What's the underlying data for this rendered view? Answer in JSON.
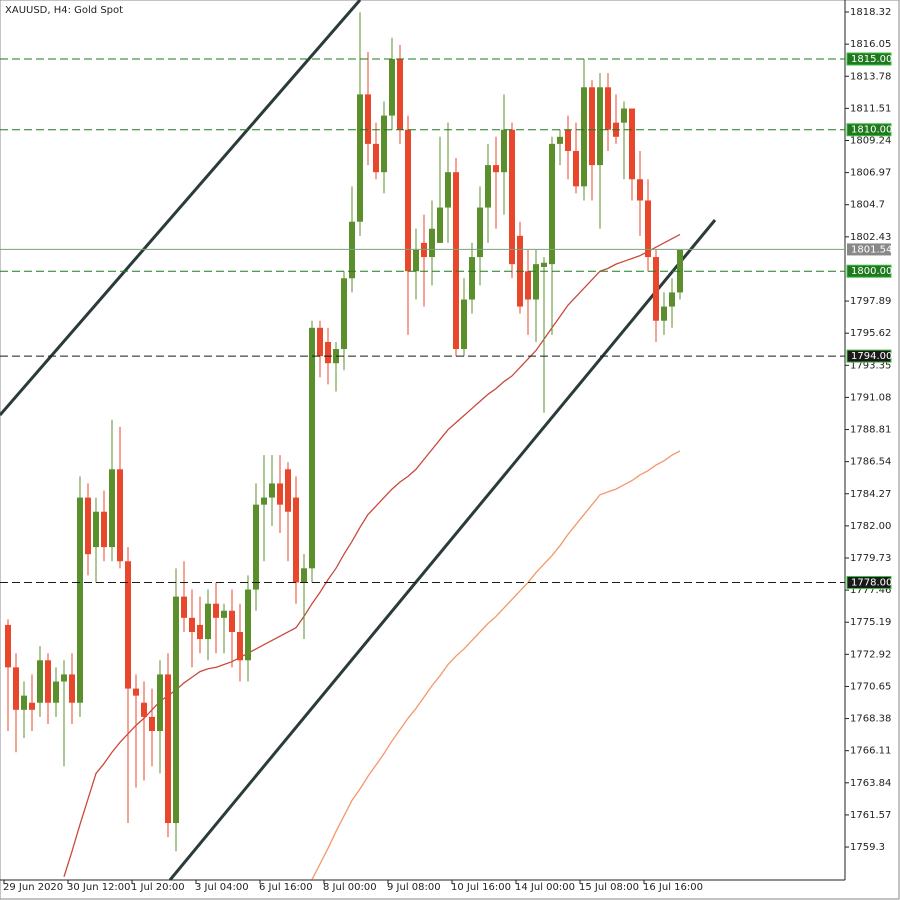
{
  "chart_data": {
    "type": "candlestick",
    "title": "XAUUSD, H4:  Gold Spot",
    "categories": [
      "29 Jun 2020",
      null,
      null,
      null,
      null,
      null,
      null,
      null,
      "30 Jun 12:00",
      null,
      null,
      null,
      null,
      null,
      null,
      null,
      "1 Jul 20:00",
      null,
      null,
      null,
      null,
      null,
      null,
      null,
      "3 Jul 04:00",
      null,
      null,
      null,
      null,
      null,
      null,
      null,
      "6 Jul 16:00",
      null,
      null,
      null,
      null,
      null,
      null,
      null,
      "8 Jul 00:00",
      null,
      null,
      null,
      null,
      null,
      null,
      null,
      "9 Jul 08:00",
      null,
      null,
      null,
      null,
      null,
      null,
      null,
      "10 Jul 16:00",
      null,
      null,
      null,
      null,
      null,
      null,
      null,
      "14 Jul 00:00",
      null,
      null,
      null,
      null,
      null,
      null,
      null,
      "15 Jul 08:00",
      null,
      null,
      null,
      null,
      null,
      null,
      null,
      "16 Jul 16:00",
      null,
      null,
      null,
      null
    ],
    "open": [
      1775.0,
      1772.0,
      1769.0,
      1769.5,
      1769.5,
      1772.5,
      1769.5,
      1771.0,
      1771.5,
      1769.5,
      1784.0,
      1780.5,
      1783.0,
      1780.5,
      1786.0,
      1779.5,
      1770.5,
      1769.5,
      1768.5,
      1767.5,
      1771.5,
      1761.0,
      1777.0,
      1775.5,
      1775.0,
      1774.0,
      1776.5,
      1775.5,
      1776.0,
      1774.5,
      1772.5,
      1777.5,
      1783.5,
      1784.0,
      1785.0,
      1786.0,
      1784.0,
      1778.0,
      1779.0,
      1796.0,
      1795.0,
      1793.5,
      1794.5,
      1799.5,
      1803.5,
      1812.5,
      1809.0,
      1807.0,
      1811.0,
      1815.0,
      1810.0,
      1800.0,
      1802.0,
      1801.0,
      1802.0,
      1804.5,
      1807.0,
      1794.5,
      1798.0,
      1801.0,
      1804.5,
      1807.5,
      1807.0,
      1810.0,
      1802.5,
      1800.0,
      1798.0,
      1800.3,
      1800.5,
      1809.0,
      1810.0,
      1808.5,
      1806.0,
      1813.0,
      1807.5,
      1813.0,
      1810.5,
      1810.5,
      1811.5,
      1806.5,
      1805.0,
      1801.0,
      1796.5,
      1797.5,
      1798.5
    ],
    "high": [
      1775.4,
      1773.0,
      1771.0,
      1771.5,
      1773.5,
      1773.0,
      1772.0,
      1772.5,
      1773.0,
      1785.5,
      1785.0,
      1784.0,
      1784.5,
      1789.5,
      1789.0,
      1780.5,
      1771.5,
      1771.0,
      1770.5,
      1772.5,
      1773.0,
      1779.0,
      1779.5,
      1777.5,
      1777.0,
      1777.5,
      1778.0,
      1776.5,
      1777.5,
      1776.5,
      1778.5,
      1785.0,
      1787.0,
      1787.0,
      1787.0,
      1786.5,
      1785.5,
      1780.0,
      1796.5,
      1796.5,
      1796.0,
      1795.0,
      1800.0,
      1806.0,
      1818.3,
      1815.5,
      1810.5,
      1812.0,
      1816.5,
      1816.0,
      1811.0,
      1803.0,
      1804.0,
      1805.0,
      1809.5,
      1810.5,
      1808.0,
      1799.5,
      1802.0,
      1806.0,
      1809.0,
      1809.5,
      1812.5,
      1810.5,
      1803.5,
      1801.5,
      1801.5,
      1801.0,
      1809.5,
      1810.0,
      1811.0,
      1810.5,
      1815.0,
      1813.5,
      1814.0,
      1814.0,
      1812.5,
      1812.0,
      1811.5,
      1808.5,
      1806.5,
      1801.5,
      1798.5,
      1799.5,
      1801.5
    ],
    "low": [
      1767.5,
      1766.0,
      1767.0,
      1767.5,
      1768.5,
      1768.0,
      1768.5,
      1765.0,
      1768.0,
      1768.5,
      1778.5,
      1778.0,
      1779.5,
      1779.5,
      1779.0,
      1761.0,
      1763.5,
      1764.0,
      1765.0,
      1764.5,
      1760.0,
      1759.0,
      1774.5,
      1772.0,
      1773.0,
      1772.5,
      1773.0,
      1773.0,
      1772.0,
      1771.0,
      1771.0,
      1776.0,
      1779.5,
      1782.0,
      1781.5,
      1779.5,
      1776.5,
      1774.0,
      1778.0,
      1792.5,
      1792.0,
      1791.5,
      1793.0,
      1798.5,
      1802.5,
      1807.5,
      1806.5,
      1805.5,
      1810.0,
      1809.0,
      1795.5,
      1798.0,
      1797.5,
      1799.0,
      1802.0,
      1802.0,
      1794.0,
      1794.0,
      1797.0,
      1799.0,
      1802.0,
      1803.0,
      1804.0,
      1799.5,
      1797.0,
      1795.5,
      1795.0,
      1790.0,
      1795.5,
      1807.5,
      1806.5,
      1805.5,
      1805.0,
      1805.0,
      1803.0,
      1808.5,
      1809.0,
      1806.5,
      1805.0,
      1802.5,
      1800.0,
      1795.0,
      1795.5,
      1796.0,
      1798.0
    ],
    "close": [
      1772.0,
      1769.0,
      1770.0,
      1769.0,
      1772.5,
      1769.5,
      1771.0,
      1771.5,
      1769.5,
      1784.0,
      1780.0,
      1783.0,
      1780.5,
      1786.0,
      1779.5,
      1770.5,
      1770.0,
      1768.5,
      1767.5,
      1771.5,
      1761.0,
      1777.0,
      1775.5,
      1774.5,
      1774.0,
      1776.5,
      1775.5,
      1776.0,
      1774.5,
      1772.5,
      1777.5,
      1783.5,
      1784.0,
      1785.0,
      1783.5,
      1783.0,
      1778.0,
      1779.0,
      1796.0,
      1794.0,
      1793.5,
      1794.5,
      1799.5,
      1803.5,
      1812.5,
      1809.0,
      1807.0,
      1811.0,
      1815.0,
      1810.0,
      1800.0,
      1801.5,
      1801.0,
      1803.0,
      1804.5,
      1807.0,
      1794.5,
      1798.0,
      1801.0,
      1804.5,
      1807.5,
      1807.0,
      1810.0,
      1800.5,
      1797.5,
      1798.0,
      1800.5,
      1800.6,
      1809.0,
      1809.5,
      1808.5,
      1806.0,
      1813.0,
      1807.5,
      1813.0,
      1810.0,
      1809.5,
      1811.5,
      1806.5,
      1805.0,
      1801.0,
      1796.5,
      1797.5,
      1798.5,
      1801.5
    ],
    "up_color": "#5b8f2c",
    "down_color": "#e8472c",
    "lines": [
      {
        "color": "#c94a3c",
        "values": [
          null,
          null,
          null,
          null,
          null,
          null,
          null,
          1757.2,
          1759.0,
          1760.9,
          1762.7,
          1764.5,
          1765.2,
          1766.0,
          1766.7,
          1767.3,
          1767.9,
          1768.4,
          1769.0,
          1769.6,
          1770.0,
          1770.4,
          1770.9,
          1771.3,
          1771.7,
          1771.9,
          1772.0,
          1772.2,
          1772.4,
          1772.7,
          1773.0,
          1773.3,
          1773.6,
          1773.9,
          1774.2,
          1774.5,
          1774.8,
          1775.6,
          1776.5,
          1777.3,
          1778.2,
          1779.0,
          1780.0,
          1780.9,
          1781.9,
          1782.8,
          1783.4,
          1784.0,
          1784.6,
          1785.1,
          1785.5,
          1786.0,
          1786.7,
          1787.4,
          1788.1,
          1788.8,
          1789.3,
          1789.8,
          1790.3,
          1790.8,
          1791.3,
          1791.7,
          1792.2,
          1792.6,
          1793.2,
          1793.8,
          1794.4,
          1795.2,
          1796.0,
          1796.8,
          1797.6,
          1798.2,
          1798.8,
          1799.4,
          1800.0,
          1800.2,
          1800.5,
          1800.7,
          1800.9,
          1801.1,
          1801.4,
          1801.7,
          1802.0,
          1802.3,
          1802.6
        ]
      },
      {
        "color": "#f4976a",
        "values": [
          null,
          null,
          null,
          null,
          null,
          null,
          null,
          null,
          null,
          null,
          null,
          null,
          null,
          null,
          null,
          null,
          null,
          null,
          null,
          null,
          null,
          null,
          null,
          null,
          null,
          null,
          null,
          null,
          null,
          null,
          null,
          null,
          null,
          null,
          null,
          null,
          null,
          null,
          1757.0,
          1758.1,
          1759.2,
          1760.4,
          1761.5,
          1762.6,
          1763.4,
          1764.3,
          1765.1,
          1765.9,
          1766.8,
          1767.6,
          1768.4,
          1769.1,
          1769.9,
          1770.7,
          1771.4,
          1772.2,
          1772.8,
          1773.3,
          1773.9,
          1774.5,
          1775.1,
          1775.6,
          1776.2,
          1776.8,
          1777.4,
          1778.0,
          1778.7,
          1779.3,
          1779.9,
          1780.6,
          1781.4,
          1782.1,
          1782.8,
          1783.5,
          1784.2,
          1784.4,
          1784.6,
          1784.9,
          1785.2,
          1785.6,
          1785.9,
          1786.3,
          1786.6,
          1787.0,
          1787.3
        ]
      }
    ],
    "levels": [
      {
        "value": 1815,
        "label": "1815.00",
        "color": "#1f7a1f"
      },
      {
        "value": 1810,
        "label": "1810.00",
        "color": "#1f7a1f"
      },
      {
        "value": 1800,
        "label": "1800.00",
        "color": "#1f7a1f"
      },
      {
        "value": 1794,
        "label": "1794.00",
        "color": "#1a1a1a"
      },
      {
        "value": 1778,
        "label": "1778.00",
        "color": "#1a1a1a"
      }
    ],
    "last_price": 1801.54,
    "ylim": [
      1756.97,
      1819.17
    ],
    "yticks": [
      1818.32,
      1816.05,
      1813.78,
      1811.51,
      1809.24,
      1806.97,
      1804.7,
      1802.43,
      1797.89,
      1795.62,
      1793.35,
      1791.08,
      1788.81,
      1786.54,
      1784.27,
      {
        "value": 1782.0,
        "label": "1782.00"
      },
      1779.73,
      1777.46,
      1775.19,
      1772.92,
      1770.65,
      1768.38,
      1766.11,
      1763.84,
      1761.57,
      1759.3
    ]
  }
}
